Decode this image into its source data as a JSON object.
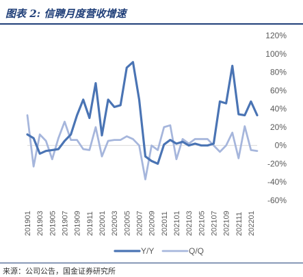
{
  "header": {
    "title": "图表 2:  信聘月度营收增速"
  },
  "footer": {
    "source": "来源：公司公告，国金证券研究所"
  },
  "colors": {
    "yy": "#4a74b4",
    "qq": "#a6b6dc",
    "title": "#1f3e78",
    "grid": "#d9d9d9"
  },
  "chart_data": {
    "type": "line",
    "title": "",
    "xlabel": "",
    "ylabel": "",
    "ylim": [
      -60,
      120
    ],
    "yticks": [
      -60,
      -40,
      -20,
      0,
      20,
      40,
      60,
      80,
      100,
      120
    ],
    "ytick_labels": [
      "-60%",
      "-40%",
      "-20%",
      "0%",
      "20%",
      "40%",
      "60%",
      "80%",
      "100%",
      "120%"
    ],
    "grid": false,
    "legend_position": "bottom",
    "x": [
      "201901",
      "201902",
      "201903",
      "201904",
      "201905",
      "201906",
      "201907",
      "201908",
      "201909",
      "201910",
      "201911",
      "201912",
      "202001",
      "202002",
      "202003",
      "202004",
      "202005",
      "202006",
      "202007",
      "202008",
      "202009",
      "202010",
      "202011",
      "202012",
      "202101",
      "202102",
      "202103",
      "202104",
      "202105",
      "202106",
      "202107",
      "202108",
      "202109",
      "202110",
      "202111",
      "202112",
      "202201",
      "202202"
    ],
    "xtick_labels": [
      "201901",
      "201903",
      "201905",
      "201907",
      "201909",
      "201911",
      "202001",
      "202003",
      "202005",
      "202007",
      "202009",
      "202011",
      "202101",
      "202103",
      "202105",
      "202107",
      "202109",
      "202111",
      "202201"
    ],
    "series": [
      {
        "name": "Y/Y",
        "values": [
          12,
          8,
          -9,
          -6,
          -5,
          -4,
          5,
          12,
          33,
          50,
          30,
          68,
          11,
          50,
          42,
          44,
          85,
          91,
          50,
          -12,
          -17,
          -20,
          1,
          6,
          2,
          4,
          0,
          2,
          0,
          0,
          2,
          48,
          46,
          87,
          34,
          33,
          48,
          33
        ]
      },
      {
        "name": "Q/Q",
        "values": [
          33,
          -23,
          12,
          5,
          -15,
          8,
          26,
          6,
          6,
          -4,
          -5,
          20,
          -12,
          5,
          6,
          6,
          10,
          7,
          0,
          -37,
          0,
          -5,
          20,
          22,
          -15,
          7,
          2,
          7,
          7,
          7,
          0,
          -7,
          0,
          14,
          -14,
          21,
          -5,
          -6
        ]
      }
    ]
  }
}
